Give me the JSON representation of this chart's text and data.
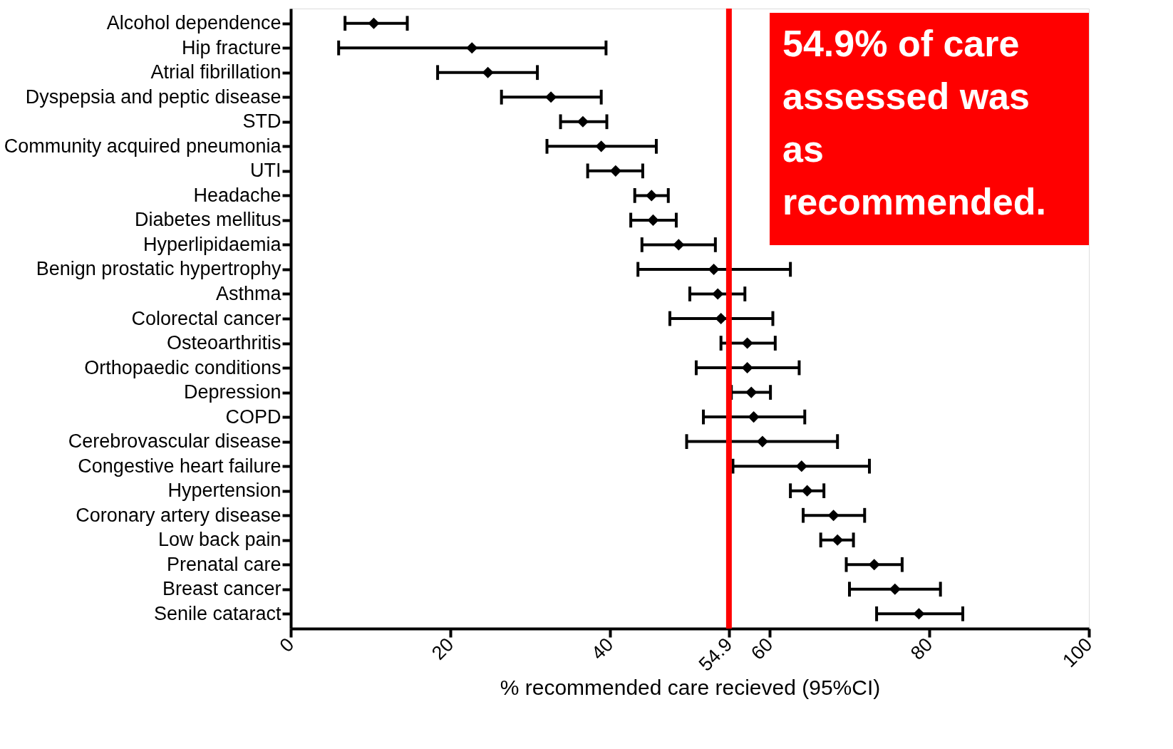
{
  "chart_data": {
    "type": "scatter",
    "orientation": "horizontal",
    "xlabel": "% recommended care recieved (95%CI)",
    "categories": [
      "Alcohol dependence",
      "Hip fracture",
      "Atrial fibrillation",
      "Dyspepsia and peptic disease",
      "STD",
      "Community acquired pneumonia",
      "UTI",
      "Headache",
      "Diabetes mellitus",
      "Hyperlipidaemia",
      "Benign prostatic hypertrophy",
      "Asthma",
      "Colorectal cancer",
      "Osteoarthritis",
      "Orthopaedic conditions",
      "Depression",
      "COPD",
      "Cerebrovascular disease",
      "Congestive heart failure",
      "Hypertension",
      "Coronary artery disease",
      "Low back pain",
      "Prenatal care",
      "Breast cancer",
      "Senile cataract"
    ],
    "series": [
      {
        "color": "#000000",
        "values": [
          10.4,
          22.7,
          24.7,
          32.6,
          36.6,
          38.9,
          40.7,
          45.2,
          45.4,
          48.6,
          53.0,
          53.5,
          53.9,
          57.2,
          57.2,
          57.7,
          58.0,
          59.1,
          64.0,
          64.7,
          68.0,
          68.5,
          73.1,
          75.7,
          78.7
        ],
        "errors": [
          [
            6.8,
            14.6
          ],
          [
            6.0,
            39.5
          ],
          [
            18.4,
            30.9
          ],
          [
            26.4,
            38.9
          ],
          [
            33.8,
            39.6
          ],
          [
            32.1,
            45.8
          ],
          [
            37.2,
            44.1
          ],
          [
            43.1,
            47.3
          ],
          [
            42.6,
            48.3
          ],
          [
            44.0,
            53.2
          ],
          [
            43.5,
            62.6
          ],
          [
            50.0,
            56.9
          ],
          [
            47.5,
            60.4
          ],
          [
            53.9,
            60.7
          ],
          [
            50.8,
            63.7
          ],
          [
            55.2,
            60.1
          ],
          [
            51.7,
            64.4
          ],
          [
            49.6,
            68.5
          ],
          [
            55.4,
            72.5
          ],
          [
            62.6,
            66.8
          ],
          [
            64.2,
            71.9
          ],
          [
            66.4,
            70.5
          ],
          [
            69.6,
            76.6
          ],
          [
            70.0,
            81.4
          ],
          [
            73.4,
            84.2
          ]
        ]
      }
    ],
    "xlim": [
      0,
      100
    ],
    "xticks": [
      0,
      20,
      40,
      54.9,
      60,
      80,
      100
    ],
    "ref_lines": [
      {
        "axis": "x",
        "value": 54.9,
        "color": "#ff0000"
      }
    ],
    "annotations": [
      "54.9% of care assessed was as recommended."
    ],
    "marker": "diamond",
    "grid": false,
    "legend": false
  }
}
